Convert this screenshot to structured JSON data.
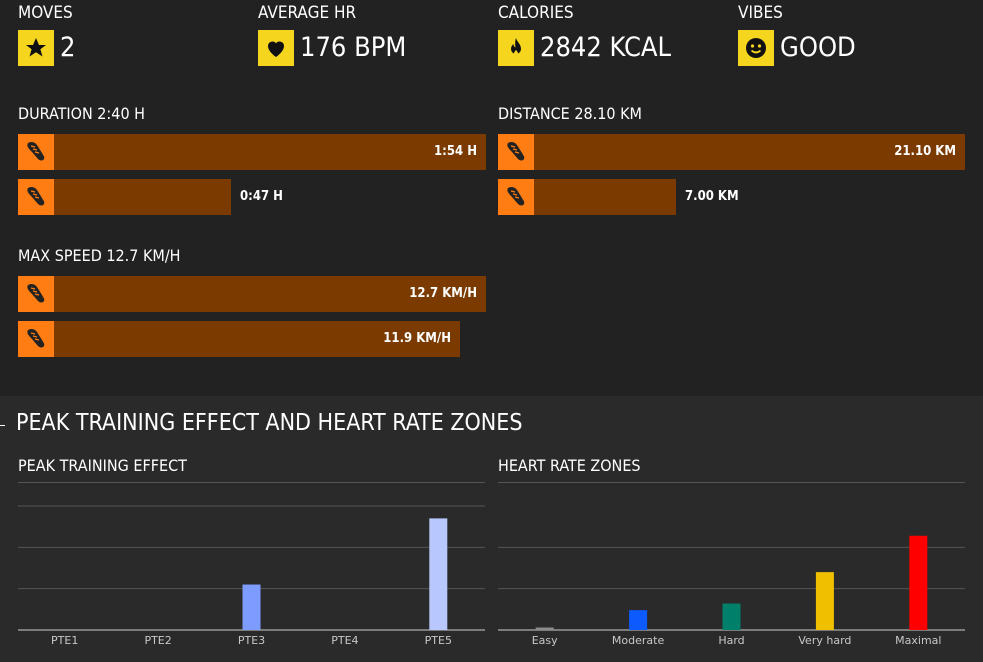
{
  "stats": [
    {
      "label": "MOVES",
      "value": "2",
      "icon": "star-icon"
    },
    {
      "label": "AVERAGE HR",
      "value": "176 BPM",
      "icon": "heart-icon"
    },
    {
      "label": "CALORIES",
      "value": "2842 KCAL",
      "icon": "flame-icon"
    },
    {
      "label": "VIBES",
      "value": "GOOD",
      "icon": "smiley-icon"
    }
  ],
  "duration": {
    "title": "DURATION 2:40 H",
    "bars": [
      {
        "label": "1:54 H",
        "fraction": 1.0
      },
      {
        "label": "0:47 H",
        "fraction": 0.41
      }
    ]
  },
  "distance": {
    "title": "DISTANCE 28.10 KM",
    "bars": [
      {
        "label": "21.10 KM",
        "fraction": 1.0
      },
      {
        "label": "7.00 KM",
        "fraction": 0.33
      }
    ]
  },
  "max_speed": {
    "title": "MAX SPEED 12.7 KM/H",
    "bars": [
      {
        "label": "12.7 KM/H",
        "fraction": 1.0
      },
      {
        "label": "11.9 KM/H",
        "fraction": 0.94
      }
    ]
  },
  "colors": {
    "accent": "#ff7d12",
    "bar_fill": "#7b3a00",
    "yellow": "#f5d51d"
  },
  "section_title": "PEAK TRAINING EFFECT AND HEART RATE ZONES",
  "chart_data": [
    {
      "type": "bar",
      "title": "PEAK TRAINING EFFECT",
      "categories": [
        "PTE1",
        "PTE2",
        "PTE3",
        "PTE4",
        "PTE5"
      ],
      "values": [
        0,
        0,
        1.1,
        0,
        2.7
      ],
      "colors": [
        "#7e9cff",
        "#7e9cff",
        "#7e9cff",
        "#7e9cff",
        "#b8c8ff"
      ],
      "ylim": [
        0,
        3
      ],
      "grid": true
    },
    {
      "type": "bar",
      "title": "HEART RATE ZONES",
      "categories": [
        "Easy",
        "Moderate",
        "Hard",
        "Very hard",
        "Maximal"
      ],
      "values": [
        3,
        24,
        32,
        70,
        114
      ],
      "colors": [
        "#8c8c8c",
        "#0d5bff",
        "#00806a",
        "#f0c000",
        "#ff0000"
      ],
      "ylim": [
        0,
        150
      ],
      "grid": true
    }
  ]
}
